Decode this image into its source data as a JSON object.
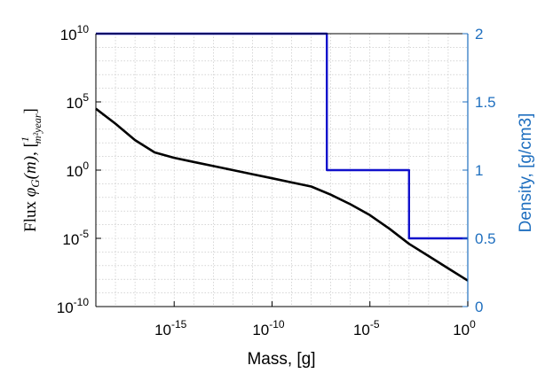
{
  "colors": {
    "flux": "#000000",
    "density": "#1111cc",
    "right_axis": "#1f6fbf",
    "grid": "#bdbdbd",
    "axis": "#000000"
  },
  "chart_data": {
    "type": "line",
    "xlabel": "Mass, [g]",
    "ylabel_left": "Flux φG(m), [1/(m²·year)]",
    "ylabel_right": "Density, [g/cm3]",
    "x_scale": "log",
    "y_left_scale": "log",
    "x_range_exp": [
      -19,
      0
    ],
    "y_left_range_exp": [
      -10,
      10
    ],
    "y_right_range": [
      0,
      2
    ],
    "grid": true,
    "x_ticks": [
      {
        "exp": -15,
        "label": "10",
        "sup": "-15"
      },
      {
        "exp": -10,
        "label": "10",
        "sup": "-10"
      },
      {
        "exp": -5,
        "label": "10",
        "sup": "-5"
      },
      {
        "exp": 0,
        "label": "10",
        "sup": "0"
      }
    ],
    "y_left_ticks": [
      {
        "exp": -10,
        "label": "10",
        "sup": "-10"
      },
      {
        "exp": -5,
        "label": "10",
        "sup": "-5"
      },
      {
        "exp": 0,
        "label": "10",
        "sup": "0"
      },
      {
        "exp": 5,
        "label": "10",
        "sup": "5"
      },
      {
        "exp": 10,
        "label": "10",
        "sup": "10"
      }
    ],
    "y_right_ticks": [
      {
        "value": 0,
        "label": "0"
      },
      {
        "value": 0.5,
        "label": "0.5"
      },
      {
        "value": 1,
        "label": "1"
      },
      {
        "value": 1.5,
        "label": "1.5"
      },
      {
        "value": 2,
        "label": "2"
      }
    ],
    "series": [
      {
        "axis": "left",
        "log_x": [
          -19,
          -18,
          -17,
          -16,
          -15,
          -14,
          -13,
          -12,
          -11,
          -10,
          -9,
          -8,
          -7,
          -6,
          -5,
          -4,
          -3,
          -2,
          -1,
          0
        ],
        "log_y": [
          4.5,
          3.4,
          2.2,
          1.3,
          0.9,
          0.6,
          0.3,
          0.0,
          -0.3,
          -0.6,
          -0.9,
          -1.2,
          -1.8,
          -2.5,
          -3.3,
          -4.3,
          -5.4,
          -6.3,
          -7.2,
          -8.1
        ]
      },
      {
        "axis": "right",
        "log_x": [
          -19,
          -7.2,
          -7.2,
          -3.0,
          -3.0,
          0
        ],
        "y": [
          2,
          2,
          1,
          1,
          0.5,
          0.5
        ]
      }
    ]
  }
}
